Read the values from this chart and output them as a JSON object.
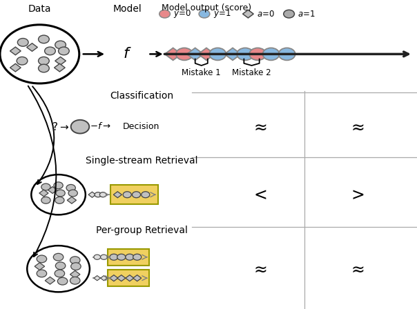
{
  "bg_color": "#ffffff",
  "pink_color": "#E8888A",
  "blue_color": "#88B8E0",
  "gray_fill": "#C0C0C0",
  "gray_fill2": "#AAAAAA",
  "dark_outline": "#444444",
  "yellow_fill": "#F0D060",
  "yellow_edge": "#999900",
  "section_labels": [
    "Classification",
    "Single-stream Retrieval",
    "Per-group Retrieval"
  ],
  "mistake1_label": "Mistake 1",
  "mistake2_label": "Mistake 2",
  "score_title": "Model output (score)",
  "data_label": "Data",
  "model_label": "Model",
  "legend_y0_label": "y=0",
  "legend_y1_label": "y=1",
  "legend_a0_label": "a=0",
  "legend_a1_label": "a=1"
}
